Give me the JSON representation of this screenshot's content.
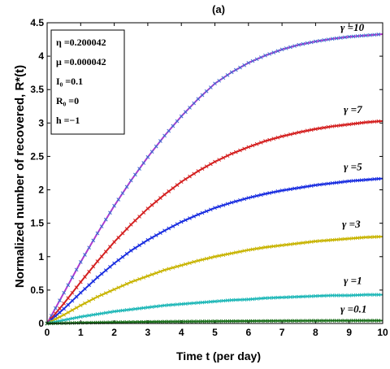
{
  "chart_data": {
    "type": "line",
    "title": "(a)",
    "xlabel": "Time t (per day)",
    "ylabel": "Normalized number of recovered, R*(t)",
    "xlim": [
      0,
      10
    ],
    "ylim": [
      0,
      4.5
    ],
    "xticks": [
      "0",
      "1",
      "2",
      "3",
      "4",
      "5",
      "6",
      "7",
      "8",
      "9",
      "10"
    ],
    "yticks": [
      "0",
      "0.5",
      "1",
      "1.5",
      "2",
      "2.5",
      "3",
      "3.5",
      "4",
      "4.5"
    ],
    "grid": false,
    "info_box": [
      "η =0.200042",
      "μ =0.000042",
      "I₀ =0.1",
      "R₀ =0",
      "h =−1"
    ],
    "x": [
      0,
      0.5,
      1,
      1.5,
      2,
      2.5,
      3,
      3.5,
      4,
      4.5,
      5,
      5.5,
      6,
      6.5,
      7,
      7.5,
      8,
      8.5,
      9,
      9.5,
      10
    ],
    "series": [
      {
        "name": "γ =10",
        "color": "#b03ad0",
        "marker_color": "#3a6fd0",
        "values": [
          0,
          0.46,
          0.92,
          1.35,
          1.76,
          2.14,
          2.49,
          2.81,
          3.1,
          3.36,
          3.59,
          3.76,
          3.9,
          4.01,
          4.1,
          4.17,
          4.22,
          4.26,
          4.29,
          4.31,
          4.33
        ]
      },
      {
        "name": "γ =7",
        "color": "#d42020",
        "marker_color": "#d42020",
        "values": [
          0,
          0.3,
          0.62,
          0.93,
          1.22,
          1.48,
          1.72,
          1.93,
          2.12,
          2.28,
          2.42,
          2.54,
          2.64,
          2.73,
          2.8,
          2.86,
          2.91,
          2.95,
          2.98,
          3.01,
          3.03
        ]
      },
      {
        "name": "γ =5",
        "color": "#1a2ee0",
        "marker_color": "#1a2ee0",
        "values": [
          0,
          0.22,
          0.46,
          0.69,
          0.9,
          1.09,
          1.25,
          1.39,
          1.52,
          1.63,
          1.73,
          1.81,
          1.88,
          1.94,
          1.99,
          2.03,
          2.07,
          2.1,
          2.13,
          2.15,
          2.17
        ]
      },
      {
        "name": "γ =3",
        "color": "#c8b400",
        "marker_color": "#c8b400",
        "values": [
          0,
          0.13,
          0.27,
          0.4,
          0.51,
          0.62,
          0.71,
          0.8,
          0.87,
          0.94,
          1.0,
          1.05,
          1.1,
          1.14,
          1.17,
          1.2,
          1.23,
          1.25,
          1.27,
          1.29,
          1.3
        ]
      },
      {
        "name": "γ =1",
        "color": "#20b8b8",
        "marker_color": "#20b8b8",
        "values": [
          0,
          0.05,
          0.1,
          0.14,
          0.18,
          0.21,
          0.24,
          0.27,
          0.29,
          0.31,
          0.33,
          0.35,
          0.36,
          0.38,
          0.39,
          0.4,
          0.41,
          0.42,
          0.42,
          0.43,
          0.43
        ]
      },
      {
        "name": "γ =0.1",
        "color": "#1a6e1a",
        "marker_color": "#1a6e1a",
        "values": [
          0,
          0.005,
          0.01,
          0.014,
          0.018,
          0.021,
          0.024,
          0.027,
          0.029,
          0.031,
          0.033,
          0.035,
          0.036,
          0.038,
          0.039,
          0.04,
          0.041,
          0.042,
          0.042,
          0.043,
          0.043
        ]
      }
    ]
  }
}
